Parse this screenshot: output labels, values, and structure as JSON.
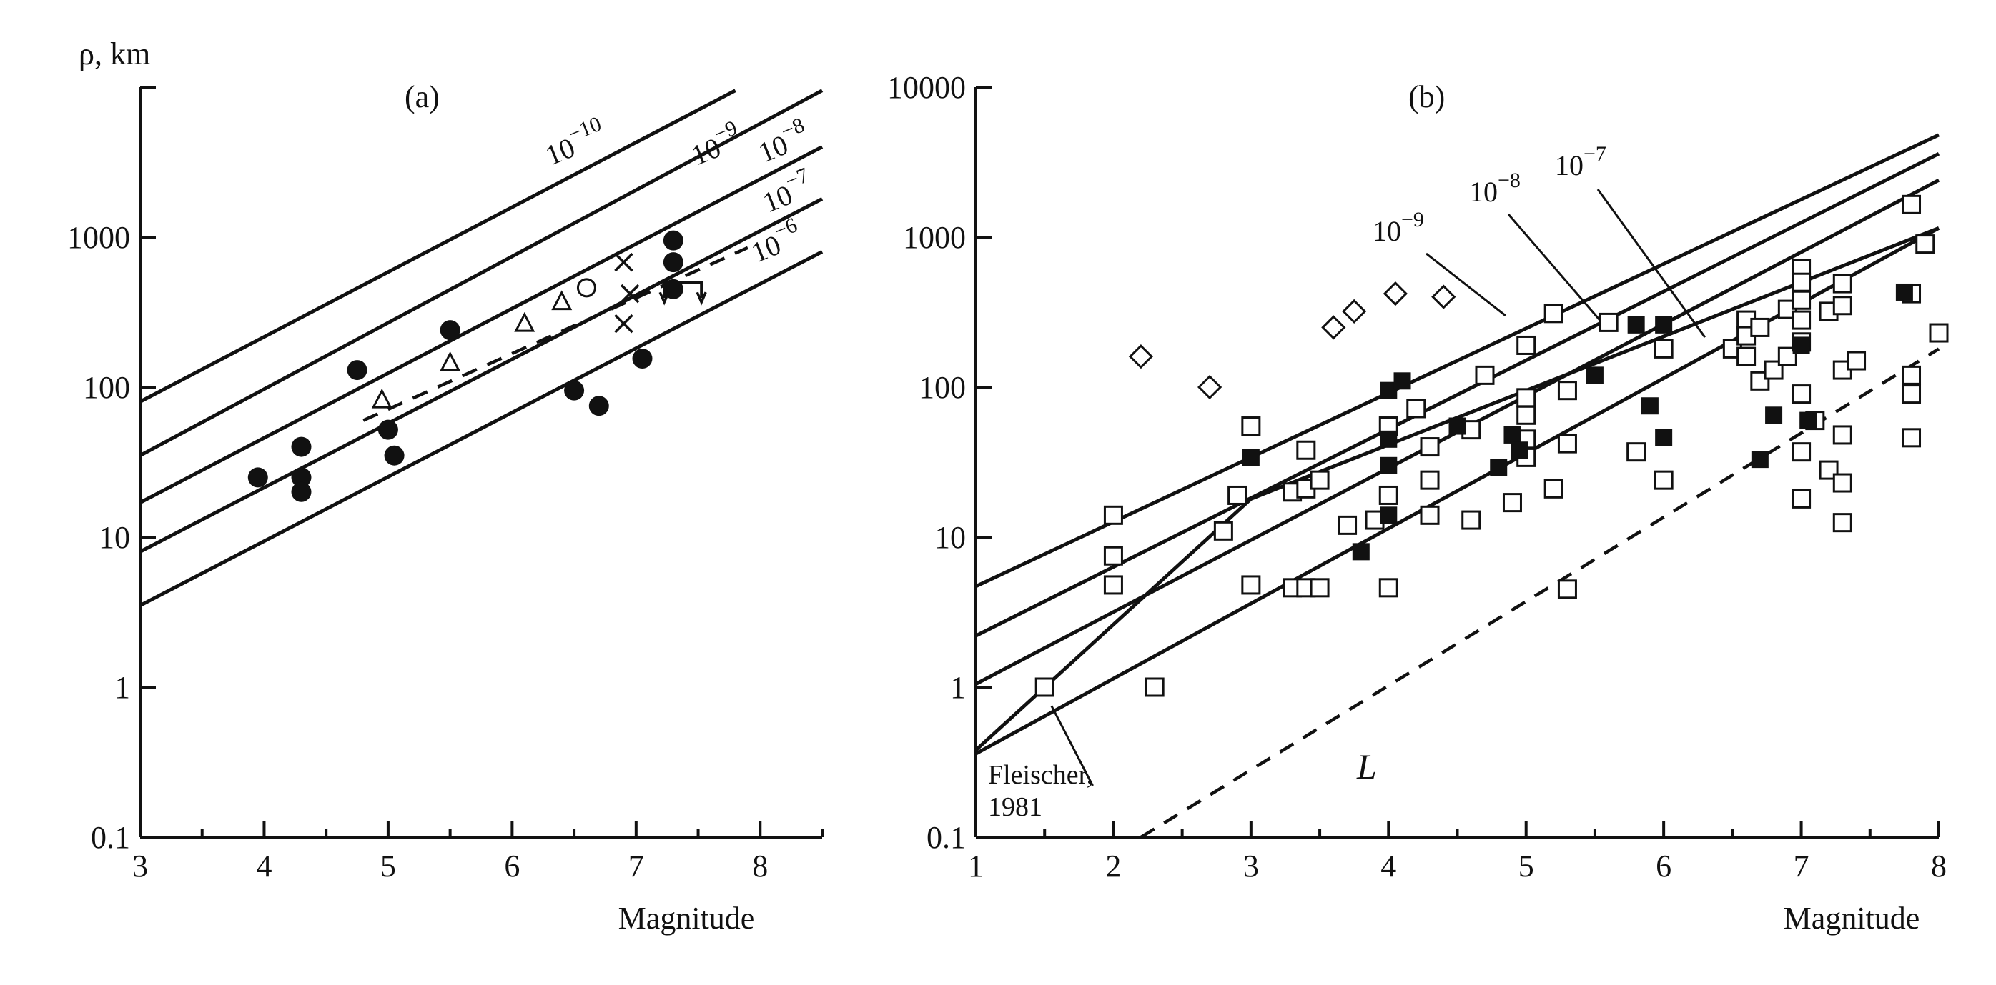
{
  "chart_data": [
    {
      "type": "scatter",
      "panel_label": "(a)",
      "ylabel": "ρ, km",
      "xlabel": "Magnitude",
      "y_scale": "log",
      "xlim": [
        3,
        8.5
      ],
      "ylim": [
        0.1,
        10000
      ],
      "x_ticks": [
        "3",
        "4",
        "5",
        "6",
        "7",
        "8"
      ],
      "y_ticks": [
        "0.1",
        "1",
        "10",
        "100",
        "1000"
      ],
      "grid": false,
      "reference_lines": [
        {
          "label_base": "10",
          "label_exp": "−10",
          "points": [
            [
              3,
              80
            ],
            [
              7.8,
              9500
            ]
          ]
        },
        {
          "label_base": "10",
          "label_exp": "−9",
          "points": [
            [
              3,
              35
            ],
            [
              8.5,
              9500
            ]
          ]
        },
        {
          "label_base": "10",
          "label_exp": "−8",
          "points": [
            [
              3,
              17
            ],
            [
              8.5,
              4000
            ]
          ]
        },
        {
          "label_base": "10",
          "label_exp": "−7",
          "points": [
            [
              3,
              8
            ],
            [
              8.5,
              1800
            ]
          ]
        },
        {
          "label_base": "10",
          "label_exp": "−6",
          "points": [
            [
              3,
              3.5
            ],
            [
              8.5,
              800
            ]
          ]
        }
      ],
      "dashed_line": {
        "points": [
          [
            4.8,
            60
          ],
          [
            7.9,
            850
          ]
        ]
      },
      "series": [
        {
          "marker": "filled-circle",
          "points": [
            [
              3.95,
              25
            ],
            [
              4.3,
              40
            ],
            [
              4.3,
              25
            ],
            [
              4.3,
              20
            ],
            [
              4.75,
              130
            ],
            [
              5.0,
              52
            ],
            [
              5.05,
              35
            ],
            [
              5.5,
              240
            ],
            [
              6.5,
              95
            ],
            [
              6.7,
              75
            ],
            [
              7.05,
              155
            ],
            [
              7.3,
              950
            ],
            [
              7.3,
              680
            ],
            [
              7.3,
              450
            ]
          ]
        },
        {
          "marker": "open-triangle",
          "points": [
            [
              4.95,
              82
            ],
            [
              5.5,
              145
            ],
            [
              6.1,
              265
            ],
            [
              6.4,
              370
            ]
          ]
        },
        {
          "marker": "open-circle",
          "points": [
            [
              6.6,
              460
            ]
          ]
        },
        {
          "marker": "cross",
          "points": [
            [
              6.9,
              680
            ],
            [
              6.95,
              420
            ],
            [
              6.9,
              265
            ]
          ]
        },
        {
          "marker": "bracket",
          "points": [
            [
              7.25,
              500
            ]
          ]
        }
      ]
    },
    {
      "type": "scatter",
      "panel_label": "(b)",
      "xlabel": "Magnitude",
      "y_scale": "log",
      "xlim": [
        1,
        8
      ],
      "ylim": [
        0.1,
        10000
      ],
      "x_ticks": [
        "1",
        "2",
        "3",
        "4",
        "5",
        "6",
        "7",
        "8"
      ],
      "y_ticks": [
        "0.1",
        "1",
        "10",
        "100",
        "1000",
        "10000"
      ],
      "grid": false,
      "reference_lines": [
        {
          "label_base": "10",
          "label_exp": "−9",
          "points": [
            [
              1,
              4.7
            ],
            [
              8,
              4800
            ]
          ]
        },
        {
          "label_base": "10",
          "label_exp": "−8",
          "points": [
            [
              1,
              2.2
            ],
            [
              8,
              3600
            ]
          ]
        },
        {
          "label_base": "10",
          "label_exp": "−7",
          "points": [
            [
              1,
              1.05
            ],
            [
              8,
              2400
            ]
          ]
        },
        {
          "points": [
            [
              1,
              0.36
            ],
            [
              8,
              1150
            ]
          ]
        }
      ],
      "fleischer_line": {
        "label_line1": "Fleischer,",
        "label_line2": "1981",
        "points": [
          [
            1,
            0.38
          ],
          [
            3,
            18
          ],
          [
            8,
            1150
          ]
        ]
      },
      "dashed_line": {
        "label": "L",
        "points": [
          [
            2.2,
            0.1
          ],
          [
            8,
            180
          ]
        ]
      },
      "series": [
        {
          "marker": "open-diamond",
          "points": [
            [
              2.2,
              160
            ],
            [
              2.7,
              100
            ],
            [
              3.6,
              250
            ],
            [
              3.75,
              320
            ],
            [
              4.05,
              420
            ],
            [
              4.4,
              400
            ]
          ]
        },
        {
          "marker": "open-square",
          "points": [
            [
              1.5,
              1.0
            ],
            [
              2.0,
              14
            ],
            [
              2.0,
              7.5
            ],
            [
              2.0,
              4.8
            ],
            [
              2.3,
              1.0
            ],
            [
              2.8,
              11
            ],
            [
              2.9,
              19
            ],
            [
              3.0,
              55
            ],
            [
              3.0,
              4.8
            ],
            [
              3.3,
              20
            ],
            [
              3.3,
              4.6
            ],
            [
              3.4,
              38
            ],
            [
              3.4,
              21
            ],
            [
              3.4,
              4.6
            ],
            [
              3.5,
              24
            ],
            [
              3.5,
              4.6
            ],
            [
              3.7,
              12
            ],
            [
              3.9,
              13
            ],
            [
              4.0,
              55
            ],
            [
              4.0,
              19
            ],
            [
              4.0,
              4.6
            ],
            [
              4.2,
              72
            ],
            [
              4.3,
              40
            ],
            [
              4.3,
              24
            ],
            [
              4.3,
              14
            ],
            [
              4.6,
              52
            ],
            [
              4.6,
              13
            ],
            [
              4.7,
              120
            ],
            [
              4.9,
              17
            ],
            [
              5.0,
              190
            ],
            [
              5.0,
              85
            ],
            [
              5.0,
              65
            ],
            [
              5.0,
              45
            ],
            [
              5.0,
              34
            ],
            [
              5.2,
              310
            ],
            [
              5.2,
              21
            ],
            [
              5.3,
              95
            ],
            [
              5.3,
              42
            ],
            [
              5.3,
              4.5
            ],
            [
              5.6,
              270
            ],
            [
              5.8,
              37
            ],
            [
              6.0,
              180
            ],
            [
              6.0,
              24
            ],
            [
              6.5,
              180
            ],
            [
              6.6,
              280
            ],
            [
              6.6,
              220
            ],
            [
              6.6,
              160
            ],
            [
              6.7,
              250
            ],
            [
              6.7,
              110
            ],
            [
              6.8,
              130
            ],
            [
              6.9,
              330
            ],
            [
              6.9,
              160
            ],
            [
              7.0,
              620
            ],
            [
              7.0,
              500
            ],
            [
              7.0,
              380
            ],
            [
              7.0,
              280
            ],
            [
              7.0,
              200
            ],
            [
              7.0,
              90
            ],
            [
              7.0,
              37
            ],
            [
              7.0,
              18
            ],
            [
              7.1,
              60
            ],
            [
              7.2,
              28
            ],
            [
              7.2,
              320
            ],
            [
              7.3,
              490
            ],
            [
              7.3,
              350
            ],
            [
              7.3,
              130
            ],
            [
              7.3,
              48
            ],
            [
              7.3,
              23
            ],
            [
              7.3,
              12.5
            ],
            [
              7.4,
              150
            ],
            [
              7.8,
              1650
            ],
            [
              7.8,
              420
            ],
            [
              7.8,
              120
            ],
            [
              7.8,
              90
            ],
            [
              7.8,
              46
            ],
            [
              7.9,
              900
            ],
            [
              8.0,
              230
            ]
          ]
        },
        {
          "marker": "filled-square",
          "points": [
            [
              3.0,
              34
            ],
            [
              3.8,
              8
            ],
            [
              4.0,
              95
            ],
            [
              4.0,
              45
            ],
            [
              4.0,
              30
            ],
            [
              4.0,
              14
            ],
            [
              4.1,
              110
            ],
            [
              4.5,
              55
            ],
            [
              4.8,
              29
            ],
            [
              4.9,
              48
            ],
            [
              4.95,
              38
            ],
            [
              5.5,
              120
            ],
            [
              5.8,
              260
            ],
            [
              5.9,
              75
            ],
            [
              6.0,
              260
            ],
            [
              6.0,
              46
            ],
            [
              6.7,
              33
            ],
            [
              6.8,
              65
            ],
            [
              7.0,
              190
            ],
            [
              7.05,
              60
            ],
            [
              7.75,
              430
            ]
          ]
        }
      ]
    }
  ]
}
